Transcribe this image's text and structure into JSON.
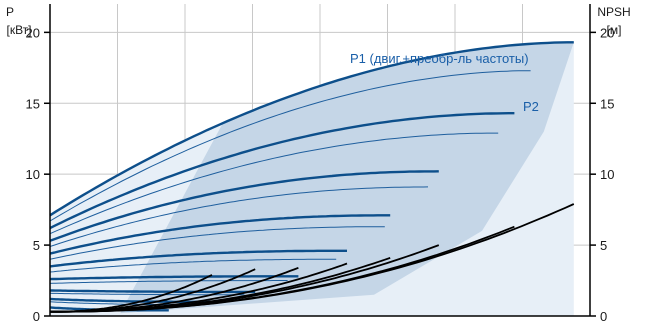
{
  "chart_data": {
    "type": "line",
    "title": "",
    "left_axis": {
      "title_line1": "P",
      "title_line2": "[кВт]",
      "ticks": [
        0,
        5,
        10,
        15,
        20
      ],
      "ylim": [
        0,
        22
      ]
    },
    "right_axis": {
      "title_line1": "NPSH",
      "title_line2": "[м]",
      "ticks": [
        0,
        5,
        10,
        15,
        20
      ],
      "ylim": [
        0,
        22
      ]
    },
    "x": {
      "label": "",
      "xlim": [
        0,
        1
      ],
      "gridlines": 8
    },
    "grid": true,
    "colors": {
      "power": "#0d4f8b",
      "power_thin": "#1f5f9e",
      "npsh": "#000000",
      "band": "#c5d6e7",
      "band_light": "#e7eff7",
      "grid": "#c8c8c8",
      "annotation": "#1a5fa8"
    },
    "annotations": [
      {
        "text": "P1 (двиг.+преобр-ль частоты)",
        "series": "P1"
      },
      {
        "text": "P2",
        "series": "P2"
      }
    ],
    "power_series": [
      {
        "name": "P1",
        "x_end": 0.97,
        "p0": 7.1,
        "p1": 19.3,
        "alpha": 1.9,
        "beta": 2.0,
        "bold": true
      },
      {
        "name": "P2",
        "x_end": 0.89,
        "p0": 6.7,
        "p1": 17.3,
        "alpha": 1.9,
        "beta": 2.0,
        "bold": false
      },
      {
        "x_end": 0.86,
        "p0": 6.2,
        "p1": 14.3,
        "alpha": 2.0,
        "beta": 2.0,
        "bold": true
      },
      {
        "x_end": 0.83,
        "p0": 5.8,
        "p1": 12.9,
        "alpha": 2.0,
        "beta": 2.0,
        "bold": false
      },
      {
        "x_end": 0.72,
        "p0": 5.3,
        "p1": 10.2,
        "alpha": 2.1,
        "beta": 2.0,
        "bold": true
      },
      {
        "x_end": 0.7,
        "p0": 4.9,
        "p1": 9.1,
        "alpha": 2.1,
        "beta": 2.0,
        "bold": false
      },
      {
        "x_end": 0.63,
        "p0": 4.4,
        "p1": 7.1,
        "alpha": 2.2,
        "beta": 2.0,
        "bold": true
      },
      {
        "x_end": 0.62,
        "p0": 4.0,
        "p1": 6.3,
        "alpha": 2.2,
        "beta": 2.0,
        "bold": false
      },
      {
        "x_end": 0.55,
        "p0": 3.5,
        "p1": 4.6,
        "alpha": 2.3,
        "beta": 2.0,
        "bold": true
      },
      {
        "x_end": 0.53,
        "p0": 3.1,
        "p1": 4.0,
        "alpha": 2.3,
        "beta": 2.0,
        "bold": false
      },
      {
        "x_end": 0.46,
        "p0": 2.6,
        "p1": 2.8,
        "alpha": 2.4,
        "beta": 2.0,
        "bold": true
      },
      {
        "x_end": 0.44,
        "p0": 2.3,
        "p1": 2.5,
        "alpha": 2.4,
        "beta": 2.0,
        "bold": false
      },
      {
        "x_end": 0.38,
        "p0": 1.8,
        "p1": 1.7,
        "alpha": 2.5,
        "beta": 2.0,
        "bold": true
      },
      {
        "x_end": 0.36,
        "p0": 1.6,
        "p1": 1.5,
        "alpha": 2.5,
        "beta": 2.0,
        "bold": false
      },
      {
        "x_end": 0.3,
        "p0": 1.2,
        "p1": 1.0,
        "alpha": 2.6,
        "beta": 2.0,
        "bold": true
      },
      {
        "x_end": 0.28,
        "p0": 1.0,
        "p1": 0.8,
        "alpha": 2.6,
        "beta": 2.0,
        "bold": false
      },
      {
        "x_end": 0.22,
        "p0": 0.6,
        "p1": 0.4,
        "alpha": 2.7,
        "beta": 2.0,
        "bold": true
      }
    ],
    "npsh_series": [
      {
        "x_start": 0.0,
        "x_end": 0.97,
        "y_end": 7.9
      },
      {
        "x_start": 0.0,
        "x_end": 0.86,
        "y_end": 6.3
      },
      {
        "x_start": 0.0,
        "x_end": 0.72,
        "y_end": 5.0
      },
      {
        "x_start": 0.0,
        "x_end": 0.63,
        "y_end": 4.1
      },
      {
        "x_start": 0.0,
        "x_end": 0.55,
        "y_end": 3.7
      },
      {
        "x_start": 0.0,
        "x_end": 0.46,
        "y_end": 3.4
      },
      {
        "x_start": 0.0,
        "x_end": 0.38,
        "y_end": 3.3
      },
      {
        "x_start": 0.0,
        "x_end": 0.3,
        "y_end": 2.9
      }
    ]
  }
}
